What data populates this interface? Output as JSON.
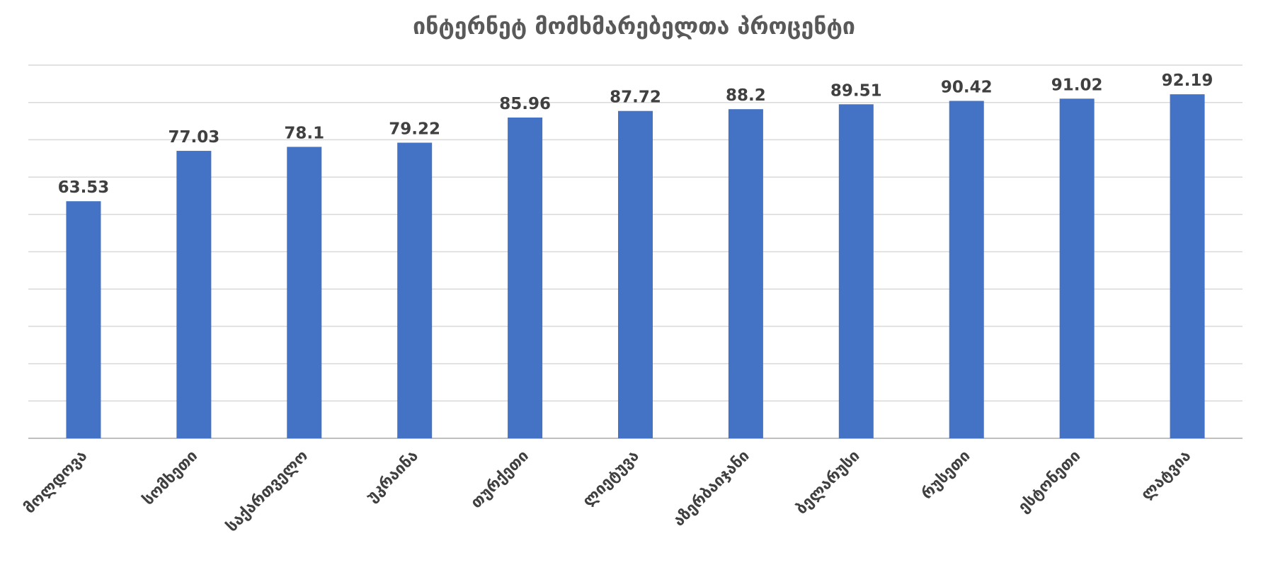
{
  "chart_data": {
    "type": "bar",
    "title": "ინტერნეტ მომხმარებელთა პროცენტი",
    "categories": [
      "მოლდოვა",
      "სომხეთი",
      "საქართველო",
      "უკრაინა",
      "თურქეთი",
      "ლიეტუვა",
      "აზერბაიჯანი",
      "ბელარუსი",
      "რუსეთი",
      "ესტონეთი",
      "ლატვია"
    ],
    "values": [
      63.53,
      77.03,
      78.1,
      79.22,
      85.96,
      87.72,
      88.2,
      89.51,
      90.42,
      91.02,
      92.19
    ],
    "data_labels": [
      "63.53",
      "77.03",
      "78.1",
      "79.22",
      "85.96",
      "87.72",
      "88.2",
      "89.51",
      "90.42",
      "91.02",
      "92.19"
    ],
    "ylim": [
      0,
      100
    ],
    "grid": true,
    "y_tick_labels_visible": false,
    "legend": "none",
    "colors": {
      "bar": "#4472c4",
      "grid": "#d9d9d9",
      "title": "#595959",
      "labels": "#404040"
    }
  }
}
